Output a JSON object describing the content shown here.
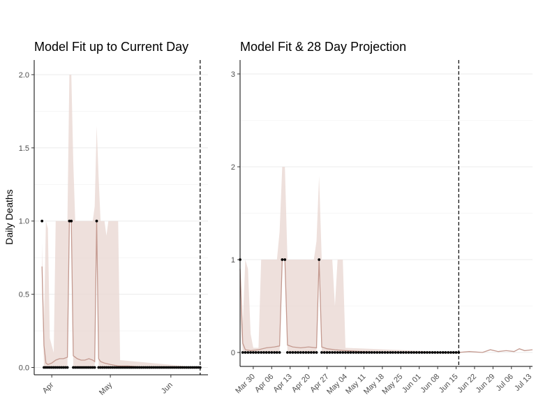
{
  "figure": {
    "ylabel": "Daily Deaths"
  },
  "chart_data": [
    {
      "type": "line",
      "title": "Model Fit up to Current Day",
      "xlabel": "",
      "ylabel": "Daily Deaths",
      "xlim": [
        "2020-03-23",
        "2020-06-20"
      ],
      "ylim": [
        -0.05,
        2.1
      ],
      "x_ticks": [
        {
          "date": "2020-04-01",
          "label": "Apr"
        },
        {
          "date": "2020-05-01",
          "label": "May"
        },
        {
          "date": "2020-06-01",
          "label": "Jun"
        }
      ],
      "y_ticks": [
        {
          "value": 0,
          "label": "0.0"
        },
        {
          "value": 0.5,
          "label": "0.5"
        },
        {
          "value": 1,
          "label": "1.0"
        },
        {
          "value": 1.5,
          "label": "1.5"
        },
        {
          "value": 2,
          "label": "2.0"
        }
      ],
      "grid": true,
      "current_day": "2020-06-16",
      "fit_color": "#c49a90",
      "ribbon_color": "#e8d6d0",
      "points_color": "#000000",
      "observed_deaths": {
        "start": "2020-03-27",
        "end": "2020-06-16",
        "ones": [
          "2020-03-27",
          "2020-04-10",
          "2020-04-11",
          "2020-04-24"
        ]
      },
      "fit": {
        "x": [
          "2020-03-27",
          "2020-03-28",
          "2020-03-29",
          "2020-03-30",
          "2020-04-01",
          "2020-04-03",
          "2020-04-05",
          "2020-04-07",
          "2020-04-09",
          "2020-04-10",
          "2020-04-11",
          "2020-04-12",
          "2020-04-13",
          "2020-04-14",
          "2020-04-16",
          "2020-04-18",
          "2020-04-20",
          "2020-04-22",
          "2020-04-23",
          "2020-04-24",
          "2020-04-25",
          "2020-04-26",
          "2020-04-28",
          "2020-05-01",
          "2020-05-05",
          "2020-05-10",
          "2020-05-20",
          "2020-06-16"
        ],
        "y": [
          0.69,
          0.15,
          0.03,
          0.02,
          0.03,
          0.05,
          0.06,
          0.06,
          0.07,
          1.0,
          0.99,
          0.08,
          0.07,
          0.06,
          0.05,
          0.05,
          0.06,
          0.05,
          0.04,
          1.0,
          0.06,
          0.04,
          0.03,
          0.02,
          0.01,
          0.01,
          0.0,
          0.0
        ]
      },
      "ribbon": {
        "x": [
          "2020-03-27",
          "2020-03-28",
          "2020-03-29",
          "2020-03-30",
          "2020-03-31",
          "2020-04-02",
          "2020-04-03",
          "2020-04-08",
          "2020-04-09",
          "2020-04-10",
          "2020-04-11",
          "2020-04-12",
          "2020-04-13",
          "2020-04-22",
          "2020-04-23",
          "2020-04-24",
          "2020-04-25",
          "2020-04-26",
          "2020-04-28",
          "2020-04-29",
          "2020-04-30",
          "2020-05-02",
          "2020-05-03",
          "2020-05-05",
          "2020-05-06",
          "2020-06-16"
        ],
        "upper": [
          0.85,
          0.3,
          1.0,
          0.95,
          0.2,
          0.1,
          1.0,
          1.0,
          1.0,
          2.0,
          2.0,
          1.4,
          1.0,
          1.0,
          1.1,
          1.65,
          1.3,
          1.0,
          1.0,
          0.9,
          1.0,
          1.0,
          1.0,
          1.0,
          0.05,
          0.0
        ],
        "lower": [
          0.6,
          0,
          0,
          0,
          0,
          0,
          0,
          0,
          0,
          1.0,
          1.0,
          0,
          0,
          0,
          0,
          1.0,
          0,
          0,
          0,
          0,
          0,
          0,
          0,
          0,
          0,
          0
        ]
      }
    },
    {
      "type": "line",
      "title": "Model Fit & 28 Day Projection",
      "xlabel": "",
      "ylabel": "",
      "xlim": [
        "2020-03-25",
        "2020-07-14"
      ],
      "ylim": [
        -0.15,
        3.15
      ],
      "x_ticks": [
        {
          "date": "2020-03-30",
          "label": "Mar 30"
        },
        {
          "date": "2020-04-06",
          "label": "Apr 06"
        },
        {
          "date": "2020-04-13",
          "label": "Apr 13"
        },
        {
          "date": "2020-04-20",
          "label": "Apr 20"
        },
        {
          "date": "2020-04-27",
          "label": "Apr 27"
        },
        {
          "date": "2020-05-04",
          "label": "May 04"
        },
        {
          "date": "2020-05-11",
          "label": "May 11"
        },
        {
          "date": "2020-05-18",
          "label": "May 18"
        },
        {
          "date": "2020-05-25",
          "label": "May 25"
        },
        {
          "date": "2020-06-01",
          "label": "Jun 01"
        },
        {
          "date": "2020-06-08",
          "label": "Jun 08"
        },
        {
          "date": "2020-06-15",
          "label": "Jun 15"
        },
        {
          "date": "2020-06-22",
          "label": "Jun 22"
        },
        {
          "date": "2020-06-29",
          "label": "Jun 29"
        },
        {
          "date": "2020-07-06",
          "label": "Jul 06"
        },
        {
          "date": "2020-07-13",
          "label": "Jul 13"
        }
      ],
      "y_ticks": [
        {
          "value": 0,
          "label": "0"
        },
        {
          "value": 1,
          "label": "1"
        },
        {
          "value": 2,
          "label": "2"
        },
        {
          "value": 3,
          "label": "3"
        }
      ],
      "grid": true,
      "current_day": "2020-06-16",
      "fit_color": "#c49a90",
      "ribbon_color": "#e8d6d0",
      "points_color": "#000000",
      "observed_deaths": {
        "start": "2020-03-25",
        "end": "2020-06-16",
        "ones": [
          "2020-03-25",
          "2020-04-10",
          "2020-04-11",
          "2020-04-24"
        ]
      },
      "fit": {
        "x": [
          "2020-03-25",
          "2020-03-26",
          "2020-03-27",
          "2020-03-29",
          "2020-04-01",
          "2020-04-04",
          "2020-04-07",
          "2020-04-09",
          "2020-04-10",
          "2020-04-11",
          "2020-04-12",
          "2020-04-14",
          "2020-04-17",
          "2020-04-20",
          "2020-04-23",
          "2020-04-24",
          "2020-04-25",
          "2020-04-27",
          "2020-04-30",
          "2020-05-04",
          "2020-05-10",
          "2020-05-20",
          "2020-06-16",
          "2020-06-20",
          "2020-06-25",
          "2020-06-28",
          "2020-07-01",
          "2020-07-04",
          "2020-07-07",
          "2020-07-09",
          "2020-07-11",
          "2020-07-14"
        ],
        "y": [
          0.9,
          0.1,
          0.03,
          0.02,
          0.03,
          0.05,
          0.06,
          0.07,
          1.0,
          1.0,
          0.08,
          0.06,
          0.05,
          0.06,
          0.05,
          1.0,
          0.06,
          0.04,
          0.03,
          0.02,
          0.01,
          0.0,
          0.0,
          0.01,
          0.0,
          0.03,
          0.01,
          0.02,
          0.01,
          0.04,
          0.02,
          0.03
        ]
      },
      "ribbon": {
        "x": [
          "2020-03-25",
          "2020-03-26",
          "2020-03-27",
          "2020-03-28",
          "2020-03-29",
          "2020-03-30",
          "2020-04-01",
          "2020-04-02",
          "2020-04-08",
          "2020-04-09",
          "2020-04-10",
          "2020-04-11",
          "2020-04-12",
          "2020-04-13",
          "2020-04-22",
          "2020-04-23",
          "2020-04-24",
          "2020-04-25",
          "2020-04-26",
          "2020-04-29",
          "2020-04-30",
          "2020-05-01",
          "2020-05-03",
          "2020-05-04",
          "2020-06-16"
        ],
        "upper": [
          1.0,
          0.3,
          1.0,
          0.9,
          0.2,
          0.05,
          0.05,
          1.0,
          1.0,
          1.3,
          2.0,
          2.0,
          1.0,
          1.0,
          1.0,
          1.2,
          1.9,
          1.0,
          1.0,
          1.0,
          0.5,
          1.0,
          1.0,
          0.05,
          0.0
        ],
        "lower": [
          0.4,
          0,
          0,
          0,
          0,
          0,
          0,
          0,
          0,
          0,
          1.0,
          1.0,
          0,
          0,
          0,
          0,
          1.0,
          0,
          0,
          0,
          0,
          0,
          0,
          0,
          0
        ]
      }
    }
  ]
}
